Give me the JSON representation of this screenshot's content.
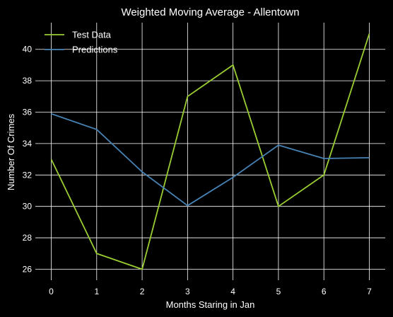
{
  "chart_data": {
    "type": "line",
    "title": "Weighted Moving Average - Allentown",
    "xlabel": "Months Staring in Jan",
    "ylabel": "Number Of Crimes",
    "x": [
      0,
      1,
      2,
      3,
      4,
      5,
      6,
      7
    ],
    "xticks": [
      "0",
      "1",
      "2",
      "3",
      "4",
      "5",
      "6",
      "7"
    ],
    "yticks": [
      "26",
      "28",
      "30",
      "32",
      "34",
      "36",
      "38",
      "40"
    ],
    "ylim": [
      25.3,
      41.7
    ],
    "xlim": [
      -0.35,
      7.35
    ],
    "grid": true,
    "legend_position": "top-left",
    "background": "#000000",
    "series": [
      {
        "name": "Test Data",
        "color": "#9acd32",
        "values": [
          33,
          27,
          26,
          37,
          39,
          30,
          32,
          41
        ]
      },
      {
        "name": "Predictions",
        "color": "#4682b4",
        "values": [
          35.9,
          34.9,
          32.2,
          30.05,
          31.85,
          33.9,
          33.05,
          33.1
        ]
      }
    ]
  }
}
